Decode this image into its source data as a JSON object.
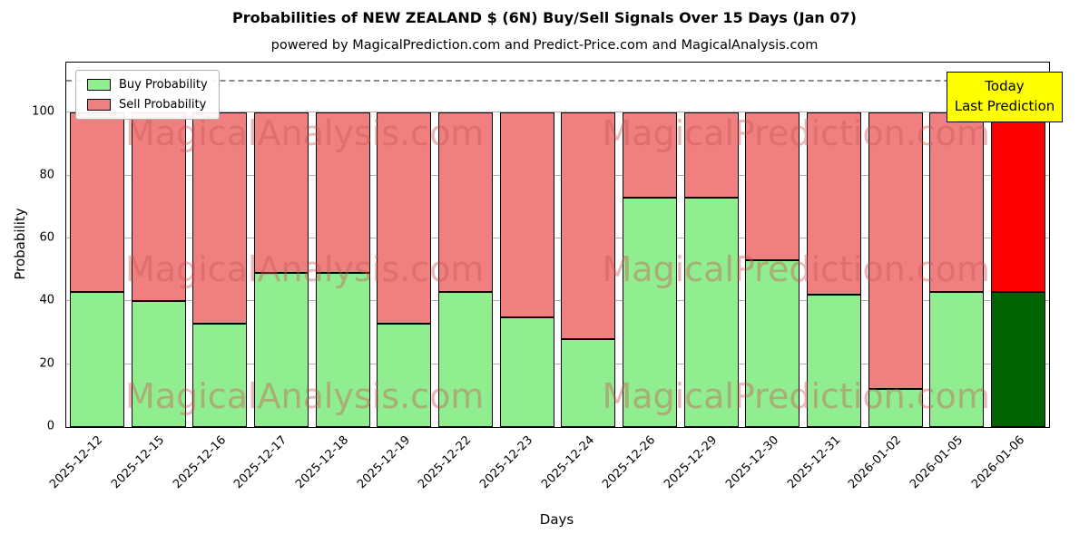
{
  "title": "Probabilities of NEW ZEALAND $ (6N) Buy/Sell Signals Over 15 Days (Jan 07)",
  "subtitle": "powered by MagicalPrediction.com and Predict-Price.com and MagicalAnalysis.com",
  "legend": {
    "buy": "Buy Probability",
    "sell": "Sell Probability",
    "position": "upper left"
  },
  "annotation": {
    "line1": "Today",
    "line2": "Last Prediction"
  },
  "watermark": {
    "left": "MagicalAnalysis.com",
    "right": "MagicalPrediction.com"
  },
  "colors": {
    "buy": "#90ee90",
    "sell": "#f08080",
    "buy_last": "#006400",
    "sell_last": "#ff0000",
    "bar_edge": "#000000",
    "grid": "#b0b0b0",
    "dashed_line": "#8a8a8a",
    "annotation_bg": "#ffff00"
  },
  "chart_data": {
    "type": "bar",
    "stacked": true,
    "title": "Probabilities of NEW ZEALAND $ (6N) Buy/Sell Signals Over 15 Days (Jan 07)",
    "xlabel": "Days",
    "ylabel": "Probability",
    "categories": [
      "2025-12-12",
      "2025-12-15",
      "2025-12-16",
      "2025-12-17",
      "2025-12-18",
      "2025-12-19",
      "2025-12-22",
      "2025-12-23",
      "2025-12-24",
      "2025-12-26",
      "2025-12-29",
      "2025-12-30",
      "2025-12-31",
      "2026-01-02",
      "2026-01-05",
      "2026-01-06"
    ],
    "series": [
      {
        "name": "Buy Probability",
        "values": [
          43,
          40,
          33,
          49,
          49,
          33,
          43,
          35,
          28,
          73,
          73,
          53,
          42,
          12,
          43,
          43
        ]
      },
      {
        "name": "Sell Probability",
        "values": [
          57,
          60,
          67,
          51,
          51,
          67,
          57,
          65,
          72,
          27,
          27,
          47,
          58,
          88,
          57,
          57
        ]
      }
    ],
    "yticks": [
      0,
      20,
      40,
      60,
      80,
      100
    ],
    "ylim": [
      0,
      116
    ],
    "dashed_line_y": 110,
    "grid": true,
    "legend_position": "upper left",
    "highlight_last_bar": true
  }
}
